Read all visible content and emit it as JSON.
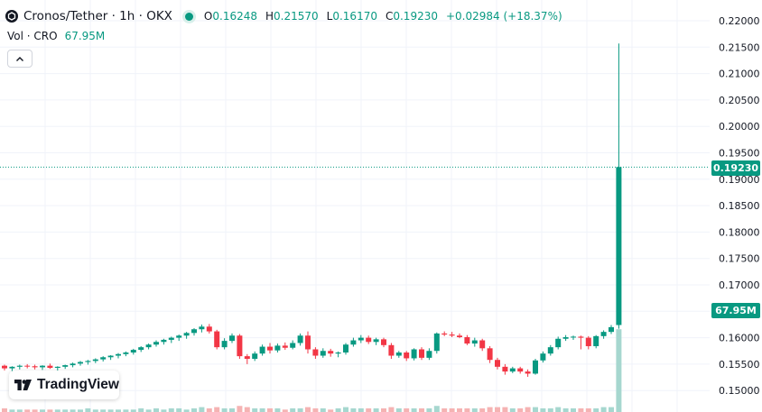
{
  "header": {
    "symbol": "Cronos/Tether · 1h · OKX",
    "ohlc": [
      {
        "k": "O",
        "v": "0.16248"
      },
      {
        "k": "H",
        "v": "0.21570"
      },
      {
        "k": "L",
        "v": "0.16170"
      },
      {
        "k": "C",
        "v": "0.19230"
      },
      {
        "k": "",
        "v": "+0.02984 (+18.37%)"
      }
    ]
  },
  "volume": {
    "label": "Vol · CRO",
    "value": "67.95M"
  },
  "price_label": "0.19230",
  "volume_label": "67.95M",
  "watermark": "TradingView",
  "colors": {
    "up": "#089981",
    "down": "#f23645",
    "vol_up": "#a6d7cf",
    "vol_down": "#f5b3b3"
  },
  "chart_data": {
    "type": "candlestick",
    "yticks": [
      "0.22000",
      "0.21500",
      "0.21000",
      "0.20500",
      "0.20000",
      "0.19500",
      "0.19000",
      "0.18500",
      "0.18000",
      "0.17500",
      "0.17000",
      "0.16500",
      "0.16000",
      "0.15500",
      "0.15000"
    ],
    "ylim": [
      0.1475,
      0.2225
    ],
    "last_price": 0.1923,
    "grid": true,
    "candles": [
      [
        0.1547,
        0.1549,
        0.1538,
        0.1542
      ],
      [
        0.1542,
        0.1546,
        0.1536,
        0.1545
      ],
      [
        0.1545,
        0.1549,
        0.154,
        0.1547
      ],
      [
        0.1547,
        0.155,
        0.1542,
        0.1546
      ],
      [
        0.1546,
        0.1549,
        0.154,
        0.1544
      ],
      [
        0.1544,
        0.1548,
        0.1539,
        0.1547
      ],
      [
        0.1547,
        0.1551,
        0.1541,
        0.1543
      ],
      [
        0.1543,
        0.1546,
        0.1538,
        0.1545
      ],
      [
        0.1545,
        0.1549,
        0.1541,
        0.1548
      ],
      [
        0.1548,
        0.1553,
        0.1544,
        0.1551
      ],
      [
        0.1551,
        0.1556,
        0.1547,
        0.1554
      ],
      [
        0.1554,
        0.1558,
        0.1549,
        0.1556
      ],
      [
        0.1556,
        0.1561,
        0.1552,
        0.1559
      ],
      [
        0.1559,
        0.1565,
        0.1555,
        0.1563
      ],
      [
        0.1563,
        0.1567,
        0.1558,
        0.1566
      ],
      [
        0.1566,
        0.1571,
        0.1561,
        0.1569
      ],
      [
        0.1569,
        0.1574,
        0.1565,
        0.1572
      ],
      [
        0.1572,
        0.1579,
        0.1568,
        0.1577
      ],
      [
        0.1577,
        0.1584,
        0.1573,
        0.1582
      ],
      [
        0.1582,
        0.1589,
        0.1578,
        0.1587
      ],
      [
        0.1587,
        0.1595,
        0.1583,
        0.1592
      ],
      [
        0.1592,
        0.1598,
        0.1587,
        0.1596
      ],
      [
        0.1596,
        0.1602,
        0.159,
        0.16
      ],
      [
        0.16,
        0.1606,
        0.1594,
        0.1604
      ],
      [
        0.1604,
        0.1611,
        0.1598,
        0.1609
      ],
      [
        0.1609,
        0.1618,
        0.1604,
        0.1616
      ],
      [
        0.1616,
        0.1625,
        0.161,
        0.1621
      ],
      [
        0.1621,
        0.1626,
        0.1608,
        0.1612
      ],
      [
        0.1612,
        0.1615,
        0.1578,
        0.1582
      ],
      [
        0.1582,
        0.1599,
        0.1578,
        0.1594
      ],
      [
        0.1594,
        0.1608,
        0.159,
        0.1604
      ],
      [
        0.1604,
        0.1607,
        0.156,
        0.1565
      ],
      [
        0.1565,
        0.1569,
        0.155,
        0.156
      ],
      [
        0.156,
        0.1574,
        0.1556,
        0.157
      ],
      [
        0.157,
        0.1587,
        0.1566,
        0.1583
      ],
      [
        0.1583,
        0.159,
        0.157,
        0.1576
      ],
      [
        0.1576,
        0.1589,
        0.1572,
        0.1585
      ],
      [
        0.1585,
        0.1591,
        0.1577,
        0.1581
      ],
      [
        0.1581,
        0.1595,
        0.1578,
        0.159
      ],
      [
        0.159,
        0.1608,
        0.1585,
        0.1604
      ],
      [
        0.1604,
        0.1612,
        0.157,
        0.1578
      ],
      [
        0.1578,
        0.1582,
        0.156,
        0.1566
      ],
      [
        0.1566,
        0.158,
        0.1562,
        0.1575
      ],
      [
        0.1575,
        0.1579,
        0.1564,
        0.157
      ],
      [
        0.157,
        0.1574,
        0.1563,
        0.1572
      ],
      [
        0.1572,
        0.159,
        0.1568,
        0.1587
      ],
      [
        0.1587,
        0.16,
        0.1583,
        0.1595
      ],
      [
        0.1595,
        0.1605,
        0.159,
        0.16
      ],
      [
        0.16,
        0.1604,
        0.1588,
        0.1592
      ],
      [
        0.1592,
        0.16,
        0.1586,
        0.1597
      ],
      [
        0.1597,
        0.16,
        0.1582,
        0.1586
      ],
      [
        0.1586,
        0.159,
        0.156,
        0.1566
      ],
      [
        0.1566,
        0.1575,
        0.1562,
        0.1572
      ],
      [
        0.1572,
        0.1575,
        0.1556,
        0.1561
      ],
      [
        0.1561,
        0.158,
        0.1557,
        0.1578
      ],
      [
        0.1578,
        0.1582,
        0.1558,
        0.1562
      ],
      [
        0.1562,
        0.158,
        0.1558,
        0.1575
      ],
      [
        0.1575,
        0.161,
        0.157,
        0.1608
      ],
      [
        0.1608,
        0.1612,
        0.1603,
        0.1606
      ],
      [
        0.1606,
        0.1611,
        0.1601,
        0.1604
      ],
      [
        0.1604,
        0.1608,
        0.1599,
        0.1601
      ],
      [
        0.1601,
        0.1605,
        0.1586,
        0.1589
      ],
      [
        0.1589,
        0.16,
        0.1583,
        0.1595
      ],
      [
        0.1595,
        0.1598,
        0.1575,
        0.158
      ],
      [
        0.158,
        0.1584,
        0.1552,
        0.1558
      ],
      [
        0.1558,
        0.1562,
        0.154,
        0.1545
      ],
      [
        0.1545,
        0.155,
        0.153,
        0.1536
      ],
      [
        0.1536,
        0.1545,
        0.1533,
        0.1542
      ],
      [
        0.1542,
        0.1545,
        0.1532,
        0.1536
      ],
      [
        0.1536,
        0.154,
        0.1526,
        0.1532
      ],
      [
        0.1532,
        0.156,
        0.153,
        0.1557
      ],
      [
        0.1557,
        0.1574,
        0.1553,
        0.157
      ],
      [
        0.157,
        0.1586,
        0.1566,
        0.1582
      ],
      [
        0.1582,
        0.1602,
        0.1578,
        0.1598
      ],
      [
        0.1598,
        0.1605,
        0.1594,
        0.1601
      ],
      [
        0.1601,
        0.1604,
        0.1596,
        0.1602
      ],
      [
        0.1602,
        0.1604,
        0.1578,
        0.16
      ],
      [
        0.16,
        0.1603,
        0.1578,
        0.1584
      ],
      [
        0.1584,
        0.1605,
        0.158,
        0.1603
      ],
      [
        0.1603,
        0.1614,
        0.1598,
        0.1611
      ],
      [
        0.1611,
        0.1624,
        0.1607,
        0.162
      ],
      [
        0.1624,
        0.2157,
        0.1617,
        0.1923
      ]
    ],
    "volumes": [
      3,
      2,
      2,
      2,
      2,
      2,
      2,
      2,
      2,
      2,
      2,
      3,
      2,
      2,
      2,
      2,
      2,
      2,
      3,
      2,
      3,
      2,
      3,
      3,
      2,
      3,
      4,
      3,
      4,
      3,
      3,
      5,
      4,
      3,
      3,
      3,
      3,
      2,
      3,
      3,
      4,
      3,
      3,
      2,
      3,
      4,
      3,
      3,
      3,
      3,
      3,
      4,
      3,
      3,
      3,
      3,
      3,
      5,
      3,
      3,
      3,
      3,
      3,
      3,
      4,
      4,
      4,
      3,
      3,
      4,
      4,
      3,
      3,
      4,
      3,
      3,
      3,
      3,
      3,
      4,
      4,
      68
    ]
  }
}
